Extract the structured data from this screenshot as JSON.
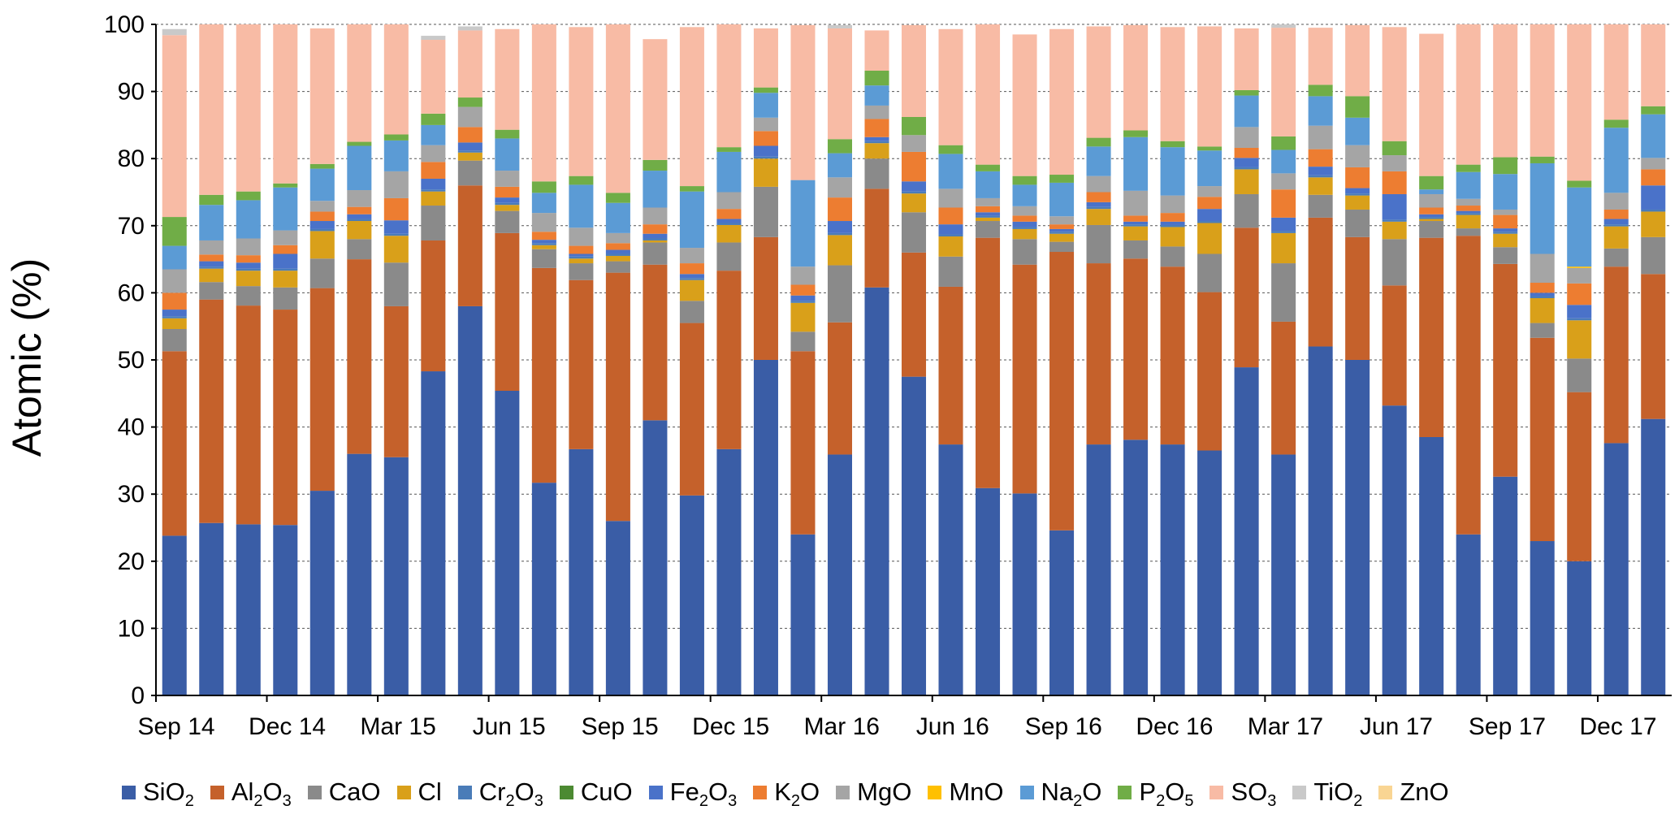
{
  "chart_data": {
    "type": "bar",
    "stacked": true,
    "title": "",
    "xlabel": "",
    "ylabel": "Atomic (%)",
    "ylim": [
      0,
      100
    ],
    "yticks": [
      0,
      10,
      20,
      30,
      40,
      50,
      60,
      70,
      80,
      90,
      100
    ],
    "grid": "horizontal dashed",
    "legend": "bottom",
    "x_tick_labels": [
      "Sep 14",
      "Dec 14",
      "Mar 15",
      "Jun 15",
      "Sep 15",
      "Dec 15",
      "Mar 16",
      "Jun 16",
      "Sep 16",
      "Dec 16",
      "Mar 17",
      "Jun 17",
      "Sep 17",
      "Dec 17"
    ],
    "x_tick_label_bars": [
      0,
      3,
      6,
      9,
      12,
      15,
      18,
      21,
      24,
      27,
      30,
      33,
      36,
      39
    ],
    "series": [
      {
        "name": "SiO2",
        "name_parts": [
          "SiO",
          "2",
          ""
        ],
        "color": "#3a5da6",
        "values": [
          23.8,
          25.7,
          25.5,
          25.4,
          30.5,
          36.0,
          35.5,
          48.3,
          58.0,
          45.4,
          31.7,
          36.7,
          26.0,
          41.0,
          29.8,
          36.7,
          50.0,
          24.0,
          35.9,
          60.8,
          47.5,
          37.4,
          30.9,
          30.1,
          24.6,
          37.4,
          38.1,
          37.4,
          36.5,
          48.9,
          35.9,
          52.0,
          50.0,
          43.2,
          38.5,
          24.0,
          32.6,
          23.0,
          20.0,
          37.6,
          41.2
        ]
      },
      {
        "name": "Al2O3",
        "name_parts": [
          "Al",
          "2",
          "O",
          "3",
          ""
        ],
        "color": "#c5612b",
        "values": [
          27.5,
          33.3,
          32.6,
          32.1,
          30.2,
          29.0,
          22.5,
          19.5,
          18.0,
          23.5,
          32.0,
          25.2,
          37.0,
          23.2,
          25.7,
          26.6,
          18.3,
          27.3,
          19.7,
          14.7,
          18.5,
          23.5,
          37.3,
          34.1,
          41.5,
          27.0,
          27.0,
          26.5,
          23.6,
          20.8,
          19.8,
          19.2,
          18.3,
          17.9,
          29.7,
          44.5,
          31.7,
          30.3,
          25.2,
          26.3,
          21.6
        ]
      },
      {
        "name": "CaO",
        "name_parts": [
          "CaO"
        ],
        "color": "#8a8a8a",
        "values": [
          3.3,
          2.6,
          2.9,
          3.3,
          4.4,
          3.0,
          6.5,
          5.2,
          3.7,
          3.3,
          2.8,
          2.5,
          1.7,
          3.3,
          3.3,
          4.2,
          7.5,
          2.9,
          8.5,
          4.5,
          6.0,
          4.5,
          2.5,
          3.8,
          1.5,
          5.7,
          2.7,
          3.0,
          5.7,
          5.0,
          8.7,
          3.4,
          4.1,
          6.9,
          2.5,
          1.1,
          2.5,
          2.2,
          5.0,
          2.7,
          5.5
        ]
      },
      {
        "name": "Cl",
        "name_parts": [
          "Cl"
        ],
        "color": "#d9a01a",
        "values": [
          1.6,
          2.0,
          2.3,
          2.5,
          4.1,
          2.7,
          4.0,
          2.1,
          1.2,
          0.9,
          0.6,
          0.7,
          0.8,
          0.3,
          3.1,
          2.6,
          4.2,
          4.3,
          4.5,
          2.3,
          2.8,
          3.0,
          0.5,
          1.5,
          1.2,
          2.4,
          2.1,
          2.9,
          4.6,
          3.7,
          4.5,
          2.6,
          2.1,
          2.6,
          0.3,
          2.0,
          2.0,
          3.7,
          5.7,
          3.3,
          3.8
        ]
      },
      {
        "name": "Cr2O3",
        "name_parts": [
          "Cr",
          "2",
          "O",
          "3",
          ""
        ],
        "color": "#4a7cb8",
        "values": [
          0.3,
          0.3,
          0.3,
          0.3,
          0.3,
          0.3,
          0.3,
          0.3,
          0.3,
          0.3,
          0.3,
          0.3,
          0.3,
          0.3,
          0.3,
          0.3,
          0.3,
          0.3,
          0.3,
          0.3,
          0.3,
          0.3,
          0.3,
          0.3,
          0.3,
          0.3,
          0.3,
          0.3,
          0.3,
          0.3,
          0.3,
          0.3,
          0.3,
          0.3,
          0.3,
          0.3,
          0.3,
          0.3,
          0.3,
          0.3,
          0.3
        ]
      },
      {
        "name": "CuO",
        "name_parts": [
          "CuO"
        ],
        "color": "#4c8a32",
        "values": [
          0,
          0,
          0,
          0,
          0,
          0,
          0,
          0,
          0,
          0,
          0,
          0,
          0,
          0,
          0,
          0,
          0,
          0,
          0,
          0,
          0,
          0,
          0,
          0,
          0,
          0,
          0,
          0,
          0,
          0,
          0,
          0,
          0,
          0,
          0,
          0,
          0,
          0,
          0,
          0,
          0
        ]
      },
      {
        "name": "Fe2O3",
        "name_parts": [
          "Fe",
          "2",
          "O",
          "3",
          ""
        ],
        "color": "#4a72c9",
        "values": [
          1.0,
          0.8,
          0.9,
          2.2,
          1.2,
          0.7,
          2.0,
          1.6,
          1.2,
          0.8,
          0.5,
          0.4,
          0.6,
          0.7,
          0.6,
          0.6,
          1.6,
          0.8,
          1.8,
          0.6,
          1.5,
          1.5,
          0.5,
          0.8,
          0.4,
          0.7,
          0.4,
          0.5,
          1.8,
          1.4,
          2.0,
          1.3,
          0.8,
          3.8,
          0.4,
          0.3,
          0.5,
          0.5,
          2.0,
          0.8,
          3.6
        ]
      },
      {
        "name": "K2O",
        "name_parts": [
          "K",
          "2",
          "O"
        ],
        "color": "#ed7d31",
        "values": [
          2.5,
          1.0,
          1.1,
          1.3,
          1.4,
          1.1,
          3.3,
          2.5,
          2.3,
          1.6,
          1.2,
          1.2,
          1.0,
          1.4,
          1.6,
          1.5,
          2.2,
          1.6,
          3.5,
          2.7,
          4.4,
          2.5,
          0.9,
          0.9,
          0.7,
          1.5,
          0.9,
          1.3,
          1.8,
          1.5,
          4.2,
          2.6,
          3.1,
          3.4,
          1.0,
          0.8,
          2.0,
          1.5,
          3.2,
          1.4,
          2.4
        ]
      },
      {
        "name": "MgO",
        "name_parts": [
          "MgO"
        ],
        "color": "#a5a5a5",
        "values": [
          3.5,
          2.1,
          2.5,
          2.2,
          1.6,
          2.5,
          4.0,
          2.5,
          3.0,
          2.4,
          2.8,
          2.7,
          1.5,
          2.5,
          2.3,
          2.5,
          2.0,
          2.7,
          3.0,
          2.0,
          2.5,
          2.8,
          1.2,
          1.4,
          1.2,
          2.4,
          3.7,
          2.6,
          1.6,
          3.1,
          2.4,
          3.5,
          3.3,
          2.4,
          2.0,
          1.0,
          0.8,
          4.3,
          2.3,
          2.5,
          1.7
        ]
      },
      {
        "name": "MnO",
        "name_parts": [
          "MnO"
        ],
        "color": "#ffc000",
        "values": [
          0,
          0,
          0,
          0,
          0,
          0,
          0,
          0,
          0,
          0,
          0,
          0,
          0,
          0,
          0,
          0,
          0,
          0,
          0,
          0,
          0,
          0,
          0,
          0,
          0,
          0,
          0,
          0,
          0,
          0,
          0,
          0,
          0,
          0,
          0,
          0,
          0,
          0,
          0.2,
          0,
          0
        ]
      },
      {
        "name": "Na2O",
        "name_parts": [
          "Na",
          "2",
          "O"
        ],
        "color": "#5b9bd5",
        "values": [
          3.5,
          5.3,
          5.7,
          6.4,
          4.8,
          6.6,
          4.6,
          3.0,
          0,
          4.8,
          3.0,
          6.4,
          4.5,
          5.5,
          8.4,
          6.0,
          3.7,
          12.9,
          3.6,
          3.0,
          0,
          5.2,
          4.0,
          3.2,
          5.0,
          4.4,
          8.0,
          7.2,
          5.3,
          4.7,
          3.5,
          4.4,
          4.1,
          0,
          0.7,
          4.0,
          5.3,
          13.5,
          11.8,
          9.7,
          6.5
        ]
      },
      {
        "name": "P2O5",
        "name_parts": [
          "P",
          "2",
          "O",
          "5",
          ""
        ],
        "color": "#70ad47",
        "values": [
          4.3,
          1.5,
          1.3,
          0.6,
          0.7,
          0.6,
          0.9,
          1.7,
          1.4,
          1.3,
          1.7,
          1.3,
          1.5,
          1.6,
          0.8,
          0.7,
          0.8,
          0,
          2.1,
          2.2,
          2.7,
          1.3,
          1.0,
          1.3,
          1.2,
          1.3,
          1.0,
          0.9,
          0.6,
          0.8,
          2.0,
          1.7,
          3.2,
          2.1,
          2.0,
          1.1,
          2.5,
          1.0,
          1.0,
          1.2,
          1.2
        ]
      },
      {
        "name": "SO3",
        "name_parts": [
          "SO",
          "3",
          ""
        ],
        "color": "#f8bba5",
        "values": [
          27.1,
          25.4,
          24.9,
          23.9,
          20.2,
          17.5,
          16.4,
          11.0,
          10.0,
          15.0,
          23.7,
          22.2,
          25.3,
          18.0,
          23.7,
          18.3,
          8.8,
          23.1,
          16.5,
          6.0,
          13.7,
          17.3,
          21.2,
          21.1,
          21.7,
          16.6,
          15.7,
          17.0,
          17.9,
          9.2,
          16.2,
          8.5,
          10.6,
          17.0,
          21.2,
          21.4,
          20.3,
          19.9,
          23.3,
          14.2,
          12.3
        ]
      },
      {
        "name": "TiO2",
        "name_parts": [
          "TiO",
          "2",
          ""
        ],
        "color": "#c9c9c9",
        "values": [
          0.9,
          0,
          0,
          0,
          0,
          0,
          0,
          0.6,
          0.6,
          0,
          0,
          0,
          0,
          0,
          0,
          0,
          0,
          0,
          0.5,
          0,
          0,
          0,
          0,
          0,
          0,
          0,
          0,
          0,
          0,
          0,
          0.6,
          0,
          0,
          0,
          0,
          0,
          0,
          0,
          0,
          0,
          0.4
        ]
      },
      {
        "name": "ZnO",
        "name_parts": [
          "ZnO"
        ],
        "color": "#f9d593",
        "values": [
          0,
          0,
          0,
          0,
          0,
          0,
          0,
          0,
          0,
          0,
          0,
          0,
          0,
          0,
          0,
          0,
          0,
          0,
          0,
          0,
          0,
          0,
          0,
          0,
          0,
          0,
          0,
          0,
          0,
          0,
          0,
          0,
          0,
          0,
          0,
          0,
          0,
          0,
          0,
          0,
          0
        ]
      }
    ]
  }
}
